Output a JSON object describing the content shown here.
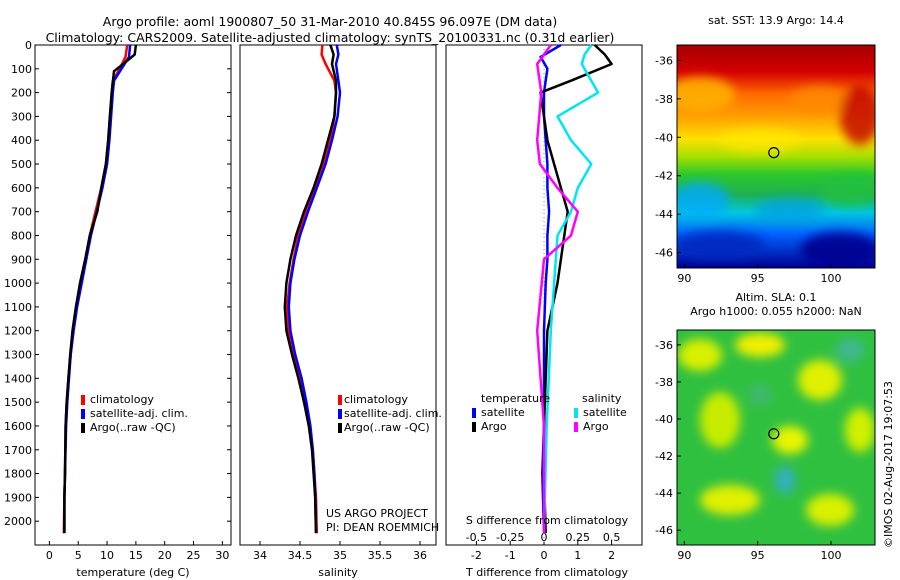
{
  "header": {
    "title_line1": "Argo profile: aoml 1900807_50 31-Mar-2010 40.845S 96.097E (DM data)",
    "title_line2": "Climatology: CARS2009. Satellite-adjusted climatology: synTS_20100331.nc (0.31d earlier)"
  },
  "credit": "©IMOS 02-Aug-2017 19:07:53",
  "colors": {
    "red": "#ff0000",
    "blue": "#0000ff",
    "black": "#000000",
    "cyan": "#00e5ee",
    "magenta": "#ff00ff"
  },
  "chart_data": [
    {
      "id": "temperature",
      "type": "line",
      "xlabel": "temperature (deg C)",
      "ylabel": "",
      "xlim": [
        -2.5,
        31.5
      ],
      "ylim": [
        2100,
        0
      ],
      "xticks": [
        0,
        5,
        10,
        15,
        20,
        25,
        30
      ],
      "yticks": [
        0,
        100,
        200,
        300,
        400,
        500,
        600,
        700,
        800,
        900,
        1000,
        1100,
        1200,
        1300,
        1400,
        1500,
        1600,
        1700,
        1800,
        1900,
        2000
      ],
      "legend": [
        "climatology",
        "satellite-adj. clim.",
        "Argo(..raw -QC)"
      ],
      "legend_position": "lower-right",
      "series": [
        {
          "name": "climatology",
          "color": "red",
          "x": [
            13.5,
            13.2,
            12.2,
            11.0,
            10.8,
            10.5,
            10.2,
            9.8,
            9.0,
            8.0,
            7.0,
            6.3,
            5.5,
            4.7,
            4.1,
            3.7,
            3.3,
            3.0,
            2.8,
            2.7,
            2.6,
            2.5
          ],
          "y": [
            0,
            50,
            100,
            150,
            200,
            300,
            400,
            500,
            600,
            700,
            800,
            900,
            1000,
            1100,
            1200,
            1300,
            1400,
            1500,
            1600,
            1800,
            1900,
            2050
          ]
        },
        {
          "name": "satellite-adj. clim.",
          "color": "blue",
          "x": [
            14.0,
            13.8,
            12.5,
            11.2,
            11.0,
            10.7,
            10.4,
            10.0,
            9.2,
            8.2,
            7.2,
            6.4,
            5.6,
            4.8,
            4.2,
            3.7,
            3.4,
            3.1,
            2.9,
            2.7,
            2.6,
            2.6
          ],
          "y": [
            0,
            50,
            100,
            150,
            200,
            300,
            400,
            500,
            600,
            700,
            800,
            900,
            1000,
            1100,
            1200,
            1300,
            1400,
            1500,
            1600,
            1800,
            1900,
            2050
          ]
        },
        {
          "name": "Argo(..raw -QC)",
          "color": "black",
          "x": [
            15.0,
            14.8,
            12.8,
            11.2,
            10.8,
            10.5,
            10.2,
            9.8,
            9.0,
            8.3,
            7.0,
            6.2,
            5.3,
            4.6,
            4.0,
            3.6,
            3.3,
            3.0,
            2.8,
            2.7,
            2.6,
            2.6
          ],
          "y": [
            0,
            40,
            80,
            110,
            200,
            300,
            400,
            500,
            600,
            700,
            800,
            900,
            1000,
            1100,
            1200,
            1300,
            1400,
            1500,
            1600,
            1800,
            1900,
            2050
          ]
        }
      ]
    },
    {
      "id": "salinity",
      "type": "line",
      "xlabel": "salinity",
      "ylabel": "",
      "xlim": [
        33.75,
        36.2
      ],
      "ylim": [
        2100,
        0
      ],
      "xticks": [
        34,
        34.5,
        35,
        35.5,
        36
      ],
      "xticklabels": [
        "34",
        "34.5",
        "35",
        "35.5",
        "36"
      ],
      "legend": [
        "climatology",
        "satellite-adj. clim.",
        "Argo(..raw -QC)"
      ],
      "legend_position": "lower-right",
      "annotation": [
        "US ARGO PROJECT",
        "PI: DEAN ROEMMICH"
      ],
      "series": [
        {
          "name": "climatology",
          "color": "red",
          "x": [
            34.78,
            34.77,
            34.82,
            34.93,
            34.95,
            34.93,
            34.88,
            34.8,
            34.7,
            34.58,
            34.48,
            34.42,
            34.37,
            34.34,
            34.36,
            34.42,
            34.5,
            34.57,
            34.62,
            34.66,
            34.68,
            34.7,
            34.71
          ],
          "y": [
            0,
            40,
            80,
            150,
            200,
            300,
            400,
            500,
            600,
            700,
            800,
            900,
            1000,
            1100,
            1200,
            1300,
            1400,
            1500,
            1600,
            1700,
            1800,
            1900,
            2050
          ]
        },
        {
          "name": "satellite-adj. clim.",
          "color": "blue",
          "x": [
            34.96,
            34.98,
            34.95,
            34.98,
            35.0,
            34.97,
            34.9,
            34.82,
            34.71,
            34.6,
            34.5,
            34.43,
            34.38,
            34.36,
            34.38,
            34.44,
            34.52,
            34.58,
            34.63,
            34.66,
            34.68,
            34.69,
            34.7
          ],
          "y": [
            0,
            40,
            80,
            150,
            200,
            300,
            400,
            500,
            600,
            700,
            800,
            900,
            1000,
            1100,
            1200,
            1300,
            1400,
            1500,
            1600,
            1700,
            1800,
            1900,
            2050
          ]
        },
        {
          "name": "Argo(..raw -QC)",
          "color": "black",
          "x": [
            34.88,
            34.92,
            34.9,
            34.95,
            34.95,
            34.93,
            34.85,
            34.77,
            34.67,
            34.55,
            34.45,
            34.38,
            34.33,
            34.31,
            34.33,
            34.4,
            34.48,
            34.55,
            34.61,
            34.65,
            34.67,
            34.69,
            34.7
          ],
          "y": [
            0,
            40,
            80,
            150,
            200,
            300,
            400,
            500,
            600,
            700,
            800,
            900,
            1000,
            1100,
            1200,
            1300,
            1400,
            1500,
            1600,
            1700,
            1800,
            1900,
            2050
          ]
        }
      ]
    },
    {
      "id": "difference",
      "type": "line",
      "xlabel": "T difference from climatology",
      "ylabel": "",
      "x2label": "S difference from climatology",
      "xlim": [
        -2.9,
        2.9
      ],
      "ylim": [
        2100,
        0
      ],
      "xticks": [
        -2,
        -1,
        0,
        1,
        2
      ],
      "x2ticks": [
        -0.5,
        -0.25,
        0,
        0.25,
        0.5
      ],
      "x2ticklabels": [
        "-0.5",
        "-0.25",
        "0",
        "0.25",
        "0.5"
      ],
      "legend_temperature_title": "temperature",
      "legend_salinity_title": "salinity",
      "legend_temperature": [
        "satellite",
        "Argo"
      ],
      "legend_salinity": [
        "satellite",
        "Argo"
      ],
      "series": [
        {
          "name": "satellite",
          "group": "temperature",
          "color": "blue",
          "x": [
            0.5,
            -0.1,
            0.1,
            0.0,
            0.0,
            0.05,
            0.1,
            0.1,
            0.15,
            0.1,
            0.1,
            0.05,
            0.0,
            0.0,
            0.0,
            -0.05,
            0.0
          ],
          "y": [
            0,
            50,
            100,
            200,
            300,
            400,
            500,
            600,
            700,
            800,
            900,
            1000,
            1200,
            1400,
            1600,
            1800,
            2050
          ]
        },
        {
          "name": "Argo",
          "group": "temperature",
          "color": "black",
          "x": [
            1.5,
            1.8,
            2.0,
            0.8,
            -0.1,
            0.1,
            0.3,
            0.5,
            0.7,
            0.6,
            0.5,
            0.4,
            0.1,
            0.05,
            0.0,
            0.0,
            0.05
          ],
          "y": [
            0,
            40,
            80,
            150,
            200,
            400,
            500,
            600,
            700,
            800,
            900,
            1000,
            1200,
            1400,
            1600,
            1800,
            2050
          ]
        },
        {
          "name": "satellite",
          "group": "salinity",
          "color": "cyan",
          "x": [
            0.35,
            0.3,
            0.28,
            0.35,
            0.4,
            0.1,
            0.2,
            0.35,
            0.25,
            0.2,
            0.1,
            0.05,
            0.02,
            0.0
          ],
          "y": [
            0,
            40,
            80,
            150,
            200,
            300,
            400,
            500,
            600,
            700,
            800,
            1200,
            1600,
            2050
          ]
        },
        {
          "name": "Argo",
          "group": "salinity",
          "color": "magenta",
          "x": [
            0.05,
            0.0,
            -0.05,
            -0.02,
            -0.05,
            -0.03,
            0.1,
            0.25,
            0.2,
            0.0,
            -0.05,
            0.0,
            0.0
          ],
          "y": [
            0,
            40,
            80,
            200,
            400,
            500,
            600,
            700,
            800,
            900,
            1200,
            1600,
            2050
          ]
        }
      ]
    }
  ],
  "maps": [
    {
      "id": "sst-map",
      "title": "sat. SST: 13.9 Argo: 14.4",
      "xticks": [
        "90",
        "95",
        "100"
      ],
      "yticks": [
        "-36",
        "-38",
        "-40",
        "-42",
        "-44",
        "-46"
      ],
      "marker": {
        "lon": 96.1,
        "lat": -40.8
      }
    },
    {
      "id": "sla-map",
      "title_line1": "Altim. SLA: 0.1",
      "title_line2": "Argo h1000: 0.055 h2000: NaN",
      "xticks": [
        "90",
        "95",
        "100"
      ],
      "yticks": [
        "-36",
        "-38",
        "-40",
        "-42",
        "-44",
        "-46"
      ],
      "marker": {
        "lon": 96.1,
        "lat": -40.8
      }
    }
  ]
}
